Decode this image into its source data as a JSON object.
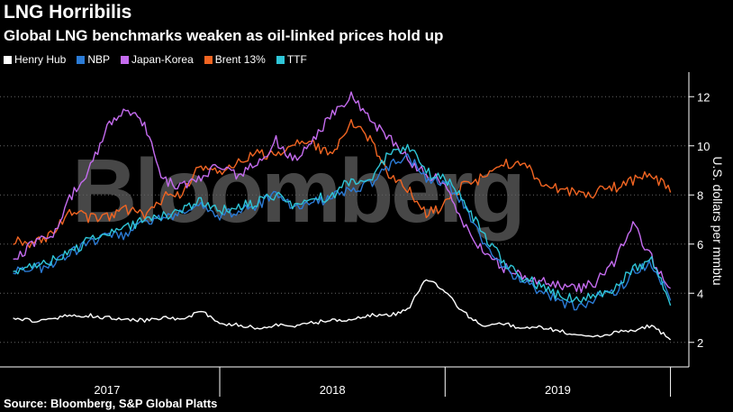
{
  "header": {
    "title": "LNG Horribilis",
    "subtitle": "Global LNG benchmarks weaken as oil-linked prices hold up"
  },
  "watermark": "Bloomberg",
  "source": "Source: Bloomberg, S&P Global Platts",
  "colors": {
    "Henry Hub": "#ffffff",
    "NBP": "#2b7bd6",
    "Japan-Korea": "#c56cf0",
    "Brent 13%": "#f26522",
    "TTF": "#2fc6d8"
  },
  "chart_data": {
    "type": "line",
    "ylabel": "U.S. dollars per mmbtu",
    "ylim": [
      1,
      13
    ],
    "yticks": [
      2,
      4,
      6,
      8,
      10,
      12
    ],
    "x_categories": [
      "2017",
      "2018",
      "2019"
    ],
    "legend_position": "top-left",
    "grid": "horizontal dotted",
    "series": [
      {
        "name": "Henry Hub",
        "x": [
          "2017-01",
          "2017-02",
          "2017-03",
          "2017-04",
          "2017-05",
          "2017-06",
          "2017-07",
          "2017-08",
          "2017-09",
          "2017-10",
          "2017-11",
          "2017-12",
          "2018-01",
          "2018-02",
          "2018-03",
          "2018-04",
          "2018-05",
          "2018-06",
          "2018-07",
          "2018-08",
          "2018-09",
          "2018-10",
          "2018-11",
          "2018-12",
          "2019-01",
          "2019-02",
          "2019-03",
          "2019-04",
          "2019-05",
          "2019-06",
          "2019-07",
          "2019-08",
          "2019-09",
          "2019-10",
          "2019-11",
          "2019-12"
        ],
        "values": [
          3.0,
          2.9,
          2.9,
          3.1,
          3.1,
          3.0,
          2.9,
          2.9,
          3.0,
          2.9,
          3.3,
          2.8,
          2.7,
          2.6,
          2.7,
          2.7,
          2.8,
          2.9,
          2.9,
          3.1,
          3.1,
          3.3,
          4.6,
          4.1,
          3.2,
          2.7,
          2.8,
          2.6,
          2.6,
          2.5,
          2.3,
          2.2,
          2.4,
          2.5,
          2.7,
          2.1
        ]
      },
      {
        "name": "NBP",
        "x": [
          "2017-01",
          "2017-02",
          "2017-03",
          "2017-04",
          "2017-05",
          "2017-06",
          "2017-07",
          "2017-08",
          "2017-09",
          "2017-10",
          "2017-11",
          "2017-12",
          "2018-01",
          "2018-02",
          "2018-03",
          "2018-04",
          "2018-05",
          "2018-06",
          "2018-07",
          "2018-08",
          "2018-09",
          "2018-10",
          "2018-11",
          "2018-12",
          "2019-01",
          "2019-02",
          "2019-03",
          "2019-04",
          "2019-05",
          "2019-06",
          "2019-07",
          "2019-08",
          "2019-09",
          "2019-10",
          "2019-11",
          "2019-12"
        ],
        "values": [
          4.8,
          5.0,
          5.1,
          5.6,
          6.0,
          6.3,
          6.4,
          6.9,
          7.0,
          7.2,
          7.7,
          7.2,
          7.3,
          7.6,
          8.0,
          7.4,
          7.7,
          7.9,
          8.3,
          8.4,
          9.2,
          9.6,
          8.7,
          8.5,
          7.6,
          6.2,
          5.2,
          4.5,
          4.1,
          3.7,
          3.4,
          3.8,
          4.0,
          4.8,
          5.2,
          3.7
        ]
      },
      {
        "name": "Japan-Korea",
        "x": [
          "2017-01",
          "2017-02",
          "2017-03",
          "2017-04",
          "2017-05",
          "2017-06",
          "2017-07",
          "2017-08",
          "2017-09",
          "2017-10",
          "2017-11",
          "2017-12",
          "2018-01",
          "2018-02",
          "2018-03",
          "2018-04",
          "2018-05",
          "2018-06",
          "2018-07",
          "2018-08",
          "2018-09",
          "2018-10",
          "2018-11",
          "2018-12",
          "2019-01",
          "2019-02",
          "2019-03",
          "2019-04",
          "2019-05",
          "2019-06",
          "2019-07",
          "2019-08",
          "2019-09",
          "2019-10",
          "2019-11",
          "2019-12"
        ],
        "values": [
          5.2,
          6.0,
          6.3,
          7.8,
          9.0,
          10.7,
          11.5,
          10.8,
          8.6,
          8.3,
          8.7,
          9.3,
          8.7,
          9.3,
          10.2,
          9.4,
          10.2,
          11.3,
          12.0,
          11.0,
          10.4,
          9.5,
          8.8,
          8.6,
          6.8,
          5.7,
          5.1,
          4.7,
          4.5,
          4.3,
          4.2,
          4.4,
          5.2,
          6.9,
          5.4,
          4.2
        ]
      },
      {
        "name": "Brent 13%",
        "x": [
          "2017-01",
          "2017-02",
          "2017-03",
          "2017-04",
          "2017-05",
          "2017-06",
          "2017-07",
          "2017-08",
          "2017-09",
          "2017-10",
          "2017-11",
          "2017-12",
          "2018-01",
          "2018-02",
          "2018-03",
          "2018-04",
          "2018-05",
          "2018-06",
          "2018-07",
          "2018-08",
          "2018-09",
          "2018-10",
          "2018-11",
          "2018-12",
          "2019-01",
          "2019-02",
          "2019-03",
          "2019-04",
          "2019-05",
          "2019-06",
          "2019-07",
          "2019-08",
          "2019-09",
          "2019-10",
          "2019-11",
          "2019-12"
        ],
        "values": [
          6.2,
          6.0,
          6.4,
          7.3,
          7.1,
          7.1,
          7.4,
          7.2,
          7.9,
          8.1,
          9.2,
          8.9,
          9.3,
          9.8,
          9.5,
          10.1,
          10.0,
          9.6,
          11.0,
          10.2,
          8.9,
          8.3,
          7.2,
          7.6,
          8.4,
          8.7,
          9.2,
          9.4,
          8.6,
          8.3,
          8.0,
          8.1,
          8.3,
          8.6,
          8.9,
          8.1
        ]
      },
      {
        "name": "TTF",
        "x": [
          "2017-01",
          "2017-02",
          "2017-03",
          "2017-04",
          "2017-05",
          "2017-06",
          "2017-07",
          "2017-08",
          "2017-09",
          "2017-10",
          "2017-11",
          "2017-12",
          "2018-01",
          "2018-02",
          "2018-03",
          "2018-04",
          "2018-05",
          "2018-06",
          "2018-07",
          "2018-08",
          "2018-09",
          "2018-10",
          "2018-11",
          "2018-12",
          "2019-01",
          "2019-02",
          "2019-03",
          "2019-04",
          "2019-05",
          "2019-06",
          "2019-07",
          "2019-08",
          "2019-09",
          "2019-10",
          "2019-11",
          "2019-12"
        ],
        "values": [
          4.9,
          5.1,
          5.3,
          5.7,
          6.1,
          6.4,
          6.6,
          7.0,
          7.1,
          7.3,
          7.8,
          7.4,
          7.5,
          7.7,
          8.0,
          7.6,
          7.8,
          8.0,
          8.6,
          8.7,
          9.6,
          10.0,
          8.9,
          8.7,
          7.8,
          6.4,
          5.4,
          4.7,
          4.3,
          3.9,
          3.7,
          4.0,
          4.2,
          5.0,
          5.4,
          3.5
        ]
      }
    ]
  }
}
